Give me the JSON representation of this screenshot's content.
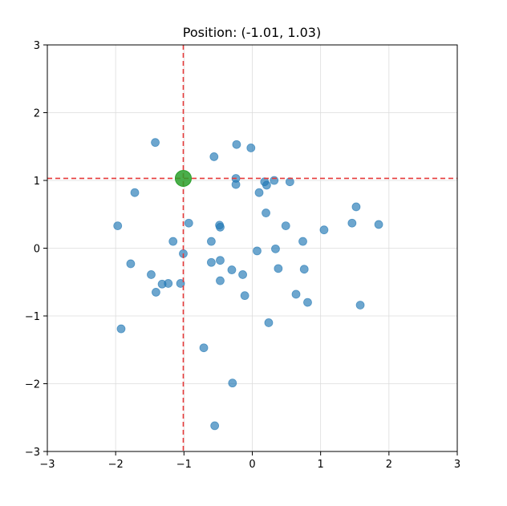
{
  "chart_data": {
    "type": "scatter",
    "title": "Position: (-1.01, 1.03)",
    "xlabel": "",
    "ylabel": "",
    "xlim": [
      -3,
      3
    ],
    "ylim": [
      -3,
      3
    ],
    "xticks": [
      -3,
      -2,
      -1,
      0,
      1,
      2,
      3
    ],
    "yticks": [
      -3,
      -2,
      -1,
      0,
      1,
      2,
      3
    ],
    "xtick_labels": [
      "−3",
      "−2",
      "−1",
      "0",
      "1",
      "2",
      "3"
    ],
    "ytick_labels": [
      "−3",
      "−2",
      "−1",
      "0",
      "1",
      "2",
      "3"
    ],
    "grid": true,
    "points": [
      {
        "x": -1.42,
        "y": 1.56
      },
      {
        "x": -0.56,
        "y": 1.35
      },
      {
        "x": -0.23,
        "y": 1.53
      },
      {
        "x": -0.02,
        "y": 1.48
      },
      {
        "x": -0.24,
        "y": 1.03
      },
      {
        "x": -0.24,
        "y": 0.94
      },
      {
        "x": 0.18,
        "y": 0.98
      },
      {
        "x": 0.21,
        "y": 0.93
      },
      {
        "x": 0.32,
        "y": 1.0
      },
      {
        "x": 0.55,
        "y": 0.98
      },
      {
        "x": 0.1,
        "y": 0.82
      },
      {
        "x": -1.72,
        "y": 0.82
      },
      {
        "x": -1.97,
        "y": 0.33
      },
      {
        "x": -0.93,
        "y": 0.37
      },
      {
        "x": -0.48,
        "y": 0.34
      },
      {
        "x": -0.47,
        "y": 0.31
      },
      {
        "x": 0.2,
        "y": 0.52
      },
      {
        "x": 0.49,
        "y": 0.33
      },
      {
        "x": 1.05,
        "y": 0.27
      },
      {
        "x": 1.46,
        "y": 0.37
      },
      {
        "x": 1.52,
        "y": 0.61
      },
      {
        "x": 1.85,
        "y": 0.35
      },
      {
        "x": -1.16,
        "y": 0.1
      },
      {
        "x": -0.6,
        "y": 0.1
      },
      {
        "x": 0.74,
        "y": 0.1
      },
      {
        "x": -1.01,
        "y": -0.08
      },
      {
        "x": 0.07,
        "y": -0.04
      },
      {
        "x": 0.34,
        "y": -0.01
      },
      {
        "x": -1.78,
        "y": -0.23
      },
      {
        "x": -0.6,
        "y": -0.21
      },
      {
        "x": -0.47,
        "y": -0.18
      },
      {
        "x": -0.3,
        "y": -0.32
      },
      {
        "x": 0.38,
        "y": -0.3
      },
      {
        "x": 0.76,
        "y": -0.31
      },
      {
        "x": -1.48,
        "y": -0.39
      },
      {
        "x": -0.14,
        "y": -0.39
      },
      {
        "x": -1.32,
        "y": -0.53
      },
      {
        "x": -1.23,
        "y": -0.52
      },
      {
        "x": -1.05,
        "y": -0.52
      },
      {
        "x": -0.47,
        "y": -0.48
      },
      {
        "x": -1.41,
        "y": -0.65
      },
      {
        "x": -0.11,
        "y": -0.7
      },
      {
        "x": 0.64,
        "y": -0.68
      },
      {
        "x": 0.81,
        "y": -0.8
      },
      {
        "x": 1.58,
        "y": -0.84
      },
      {
        "x": -1.92,
        "y": -1.19
      },
      {
        "x": 0.24,
        "y": -1.1
      },
      {
        "x": -0.71,
        "y": -1.47
      },
      {
        "x": -0.29,
        "y": -1.99
      },
      {
        "x": -0.55,
        "y": -2.62
      }
    ],
    "point_color": "#1f77b4",
    "marker": {
      "x": -1.01,
      "y": 1.03,
      "color": "#2ca02c"
    },
    "crosshair_color": "#e63b3b"
  }
}
